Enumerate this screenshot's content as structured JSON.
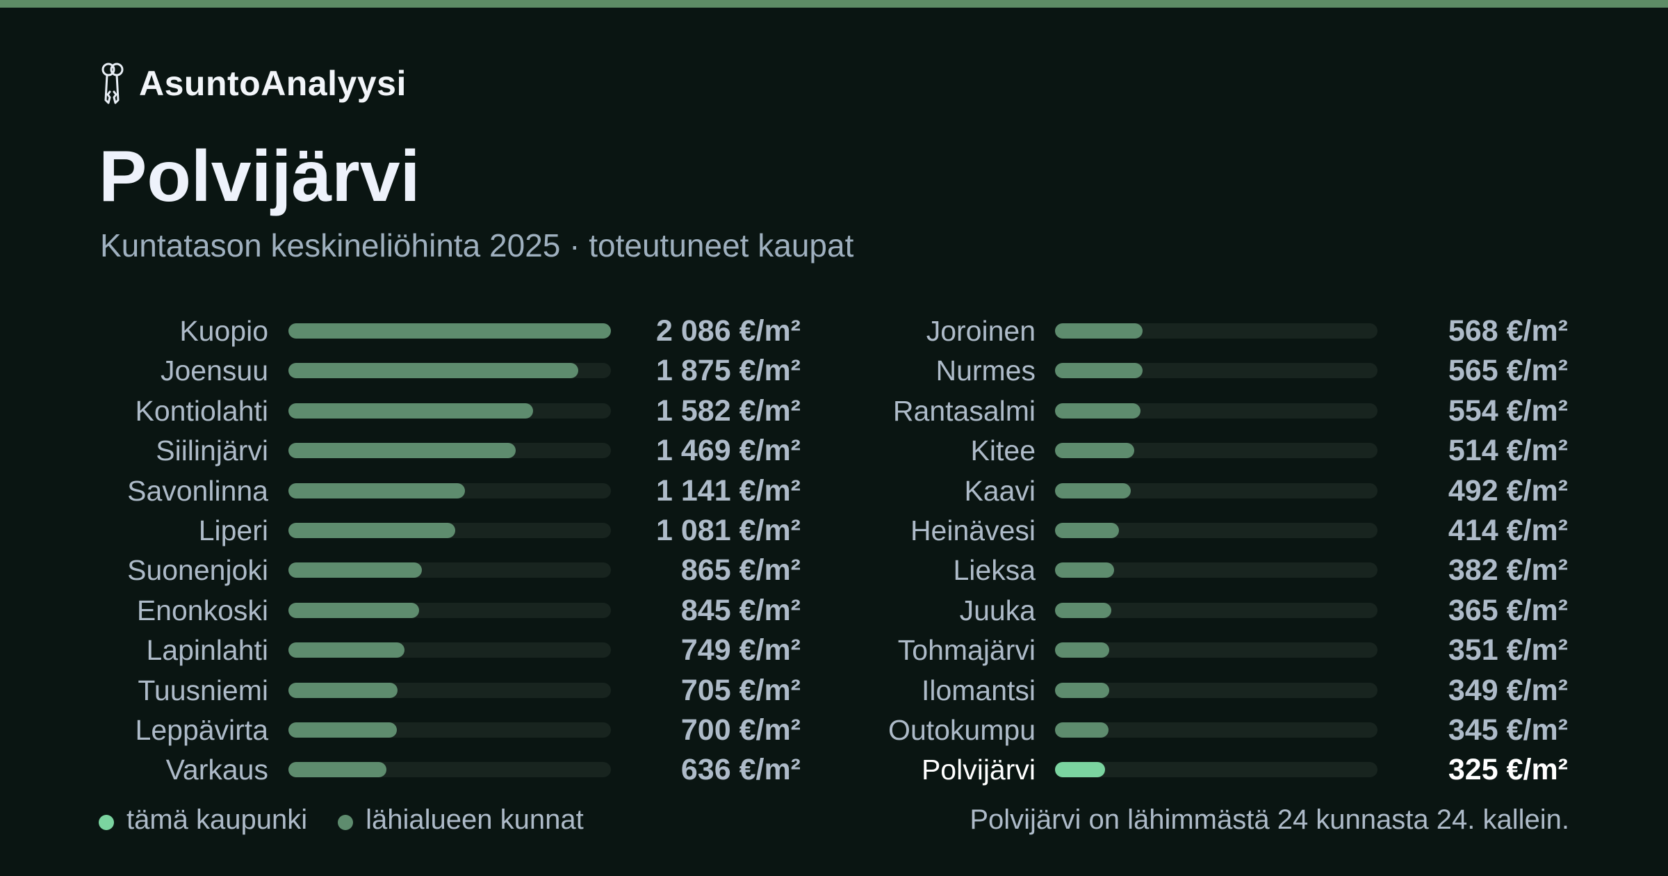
{
  "brand": {
    "name": "AsuntoAnalyysi",
    "icon": "keys-icon"
  },
  "title": "Polvijärvi",
  "subtitle": "Kuntatason keskineliöhinta 2025 · toteutuneet kaupat",
  "colors": {
    "background": "#0a1512",
    "accent_stripe": "#5e8c66",
    "bar": "#5e8c6e",
    "bar_highlight": "#7bd4a0",
    "track": "#18241f",
    "text_muted": "#aebbc9"
  },
  "chart_data": {
    "type": "bar",
    "orientation": "horizontal",
    "unit": "€/m²",
    "xlim": [
      0,
      2086
    ],
    "highlight": "Polvijärvi",
    "categories": [
      "Kuopio",
      "Joensuu",
      "Kontiolahti",
      "Siilinjärvi",
      "Savonlinna",
      "Liperi",
      "Suonenjoki",
      "Enonkoski",
      "Lapinlahti",
      "Tuusniemi",
      "Leppävirta",
      "Varkaus",
      "Joroinen",
      "Nurmes",
      "Rantasalmi",
      "Kitee",
      "Kaavi",
      "Heinävesi",
      "Lieksa",
      "Juuka",
      "Tohmajärvi",
      "Ilomantsi",
      "Outokumpu",
      "Polvijärvi"
    ],
    "values": [
      2086,
      1875,
      1582,
      1469,
      1141,
      1081,
      865,
      845,
      749,
      705,
      700,
      636,
      568,
      565,
      554,
      514,
      492,
      414,
      382,
      365,
      351,
      349,
      345,
      325
    ],
    "value_labels": [
      "2 086 €/m²",
      "1 875 €/m²",
      "1 582 €/m²",
      "1 469 €/m²",
      "1 141 €/m²",
      "1 081 €/m²",
      "865 €/m²",
      "845 €/m²",
      "749 €/m²",
      "705 €/m²",
      "700 €/m²",
      "636 €/m²",
      "568 €/m²",
      "565 €/m²",
      "554 €/m²",
      "514 €/m²",
      "492 €/m²",
      "414 €/m²",
      "382 €/m²",
      "365 €/m²",
      "351 €/m²",
      "349 €/m²",
      "345 €/m²",
      "325 €/m²"
    ]
  },
  "legend": {
    "this_city": "tämä kaupunki",
    "nearby": "lähialueen kunnat"
  },
  "footnote": "Polvijärvi on lähimmästä 24 kunnasta 24. kallein."
}
